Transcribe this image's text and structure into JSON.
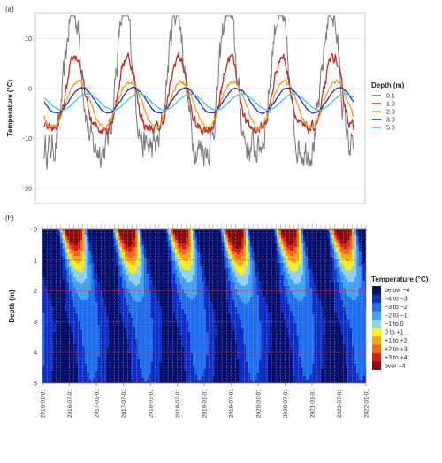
{
  "chart_data": [
    {
      "panel": "(a)",
      "type": "line",
      "ylabel": "Temperature (°C)",
      "ylim": [
        -23,
        15
      ],
      "yticks": [
        10,
        0,
        -10,
        -20
      ],
      "grid": true,
      "legend": {
        "title": "Depth (m)",
        "placement": "right",
        "entries": [
          "0.1",
          "1.0",
          "2.0",
          "3.0",
          "5.0"
        ]
      },
      "x_start": "2016-01-01",
      "x_end": "2022-01-01",
      "series": [
        {
          "name": "0.1",
          "color": "#7a7a7a",
          "mean": -1.5,
          "amplitude": 14.0,
          "phase_peak": "07-25",
          "noise": 2.6
        },
        {
          "name": "1.0",
          "color": "#c0302a",
          "mean": -2.6,
          "amplitude": 7.2,
          "phase_peak": "08-10",
          "noise": 0.9
        },
        {
          "name": "2.0",
          "color": "#f0a020",
          "mean": -3.2,
          "amplitude": 4.6,
          "phase_peak": "08-30",
          "noise": 0.3
        },
        {
          "name": "3.0",
          "color": "#1c2fd0",
          "mean": -2.4,
          "amplitude": 2.5,
          "phase_peak": "09-25",
          "noise": 0.1
        },
        {
          "name": "5.0",
          "color": "#40c8d8",
          "mean": -2.7,
          "amplitude": 1.6,
          "phase_peak": "11-01",
          "noise": 0.05
        }
      ]
    },
    {
      "panel": "(b)",
      "type": "heatmap",
      "ylabel": "Depth (m)",
      "ylim": [
        5,
        0
      ],
      "yticks": [
        0,
        1,
        2,
        3,
        4,
        5
      ],
      "x_ticks": [
        "2016-01-01",
        "2016-07-01",
        "2017-01-01",
        "2017-07-01",
        "2018-01-01",
        "2018-07-01",
        "2019-01-01",
        "2019-07-01",
        "2020-01-01",
        "2020-07-01",
        "2021-01-01",
        "2021-07-01",
        "2022-01-01"
      ],
      "legend": {
        "title": "Temperature (°C)",
        "placement": "right",
        "bins": [
          {
            "label": "below −4",
            "color": "#08106e"
          },
          {
            "label": "−4 to −3",
            "color": "#0f2ec8"
          },
          {
            "label": "−3 to −2",
            "color": "#1f6ef0"
          },
          {
            "label": "−2 to −1",
            "color": "#3fa2f8"
          },
          {
            "label": "−1 to 0",
            "color": "#8fd2fa"
          },
          {
            "label": "0 to +1",
            "color": "#f6f21e"
          },
          {
            "label": "+1 to +2",
            "color": "#faa81a"
          },
          {
            "label": "+2 to +3",
            "color": "#f26418"
          },
          {
            "label": "+3 to +4",
            "color": "#dc1c14"
          },
          {
            "label": "over +4",
            "color": "#8c0a0a"
          }
        ]
      },
      "depth_reference_lines": [
        0,
        1,
        2,
        3,
        4,
        5
      ]
    }
  ]
}
